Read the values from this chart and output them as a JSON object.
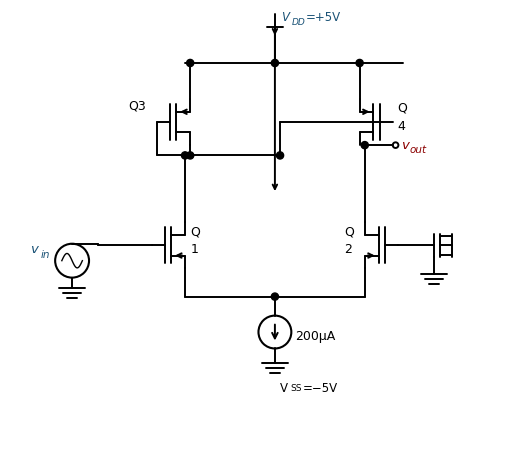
{
  "bg_color": "#ffffff",
  "line_color": "#000000",
  "blue": "#1a5276",
  "red": "#8B0000",
  "fig_w": 5.19,
  "fig_h": 4.7,
  "dpi": 100,
  "vdd_label": "VDD=+5V",
  "vss_label": "VSS=−5V",
  "vout_label": "vout",
  "vin_label": "vin",
  "i_label": "200μA",
  "Q1_label": "Q\n1",
  "Q2_label": "Q\n2",
  "Q3_label": "Q3",
  "Q4_label": "Q\n4"
}
